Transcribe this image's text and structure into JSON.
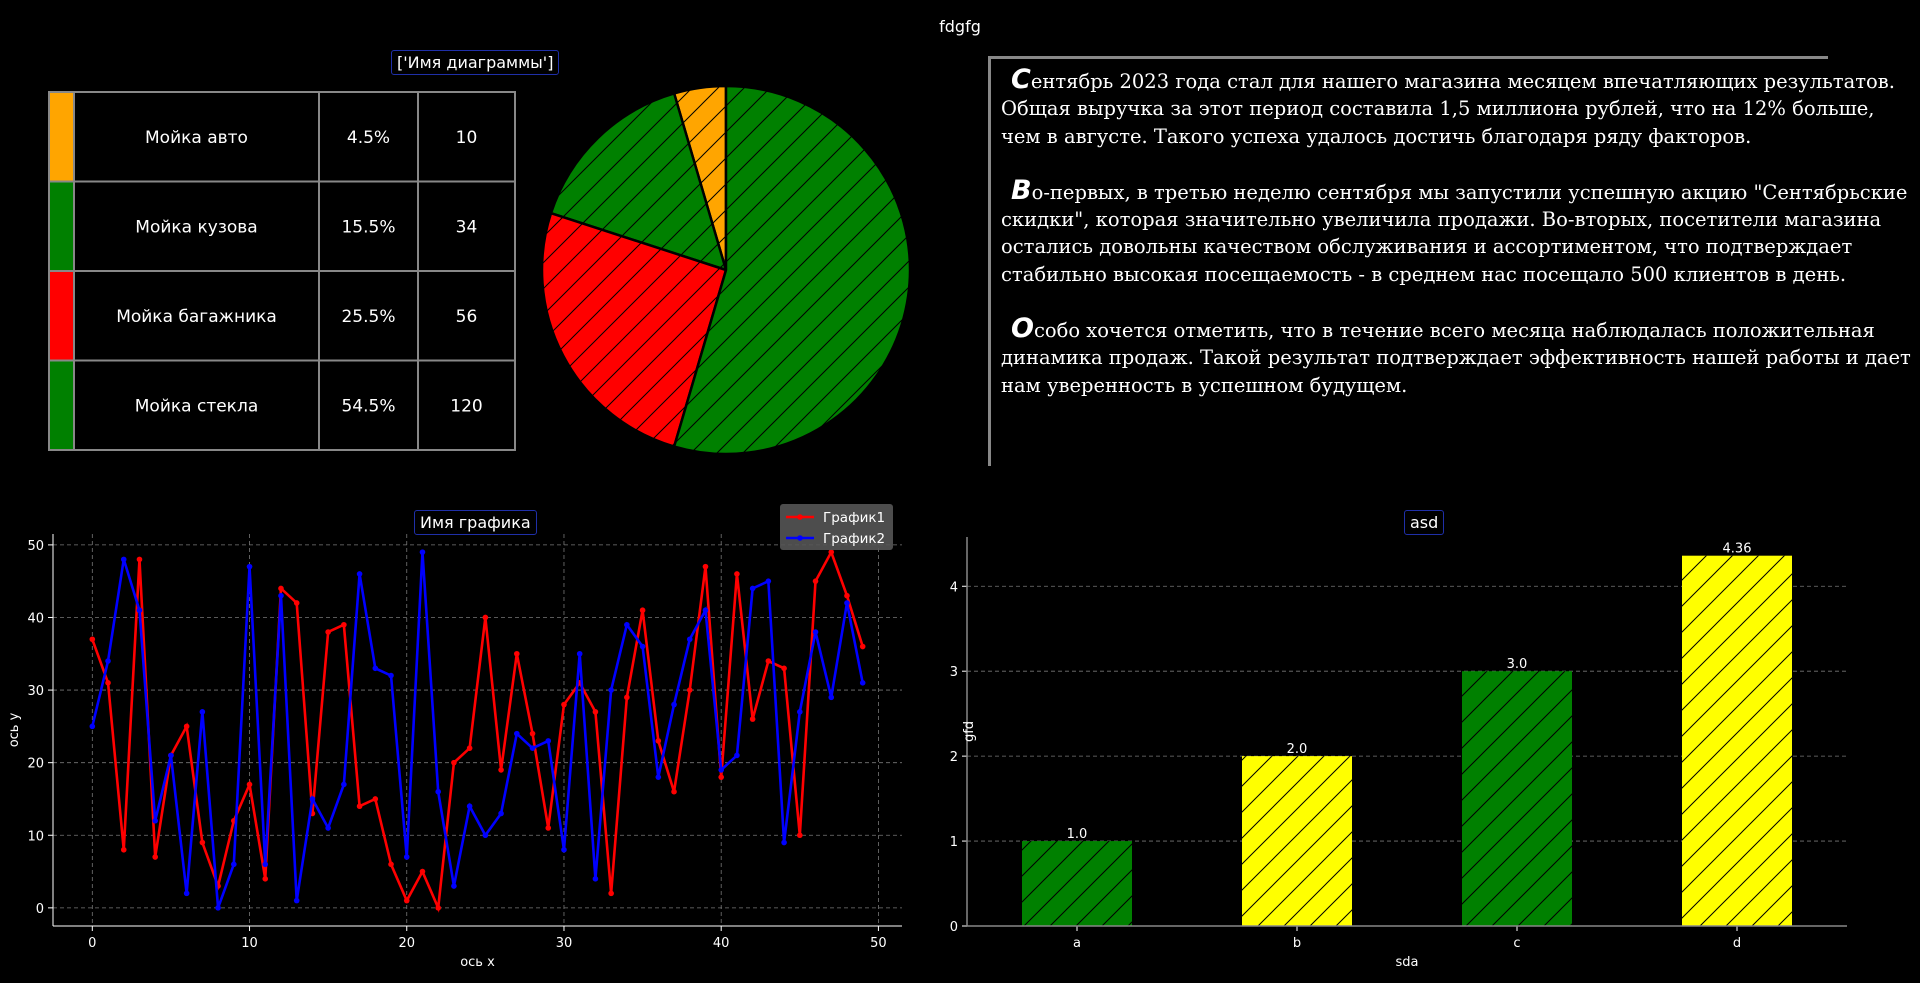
{
  "suptitle": "fdgfg",
  "colors": {
    "orange": "#ffa500",
    "green": "#008000",
    "red": "#ff0000",
    "blue": "#0000ff",
    "yellow": "#ffff00"
  },
  "chart_data": [
    {
      "type": "table",
      "title": "['Имя диаграммы']",
      "rows": [
        {
          "color": "#ffa500",
          "label": "Мойка авто",
          "percent": "4.5%",
          "value": "10"
        },
        {
          "color": "#008000",
          "label": "Мойка кузова",
          "percent": "15.5%",
          "value": "34"
        },
        {
          "color": "#ff0000",
          "label": "Мойка багажника",
          "percent": "25.5%",
          "value": "56"
        },
        {
          "color": "#008000",
          "label": "Мойка стекла",
          "percent": "54.5%",
          "value": "120"
        }
      ]
    },
    {
      "type": "pie",
      "title": "",
      "slices": [
        {
          "label": "Мойка авто",
          "value": 10,
          "color": "#ffa500"
        },
        {
          "label": "Мойка кузова",
          "value": 34,
          "color": "#008000"
        },
        {
          "label": "Мойка багажника",
          "value": 56,
          "color": "#ff0000"
        },
        {
          "label": "Мойка стекла",
          "value": 120,
          "color": "#008000"
        }
      ],
      "hatch": "diagonal"
    },
    {
      "type": "line",
      "title": "Имя графика",
      "xlabel": "ось x",
      "ylabel": "ось y",
      "xlim": [
        -2.5,
        51.5
      ],
      "ylim": [
        -2.5,
        51.5
      ],
      "xticks": [
        0,
        10,
        20,
        30,
        40,
        50
      ],
      "yticks": [
        0,
        10,
        20,
        30,
        40,
        50
      ],
      "grid": true,
      "legend": "top-right",
      "x": [
        0,
        1,
        2,
        3,
        4,
        5,
        6,
        7,
        8,
        9,
        10,
        11,
        12,
        13,
        14,
        15,
        16,
        17,
        18,
        19,
        20,
        21,
        22,
        23,
        24,
        25,
        26,
        27,
        28,
        29,
        30,
        31,
        32,
        33,
        34,
        35,
        36,
        37,
        38,
        39,
        40,
        41,
        42,
        43,
        44,
        45,
        46,
        47,
        48,
        49
      ],
      "series": [
        {
          "name": "График1",
          "color": "#ff0000",
          "values": [
            37,
            31,
            8,
            48,
            7,
            21,
            25,
            9,
            3,
            12,
            17,
            4,
            44,
            42,
            13,
            38,
            39,
            14,
            15,
            6,
            1,
            5,
            0,
            20,
            22,
            40,
            19,
            35,
            24,
            11,
            28,
            31,
            27,
            2,
            29,
            41,
            23,
            16,
            30,
            47,
            18,
            46,
            26,
            34,
            33,
            10,
            45,
            49,
            43,
            36
          ]
        },
        {
          "name": "График2",
          "color": "#0000ff",
          "values": [
            25,
            34,
            48,
            41,
            12,
            21,
            2,
            27,
            0,
            6,
            47,
            6,
            43,
            1,
            15,
            11,
            17,
            46,
            33,
            32,
            7,
            49,
            16,
            3,
            14,
            10,
            13,
            24,
            22,
            23,
            8,
            35,
            4,
            30,
            39,
            36,
            18,
            28,
            37,
            41,
            19,
            21,
            44,
            45,
            9,
            27,
            38,
            29,
            42,
            31
          ]
        }
      ]
    },
    {
      "type": "bar",
      "title": "asd",
      "xlabel": "sda",
      "ylabel": "gfd",
      "categories": [
        "a",
        "b",
        "c",
        "d"
      ],
      "values": [
        1.0,
        2.0,
        3.0,
        4.36
      ],
      "data_labels": [
        "1.0",
        "2.0",
        "3.0",
        "4.36"
      ],
      "bar_colors": [
        "#008000",
        "#ffff00",
        "#008000",
        "#ffff00"
      ],
      "ylim": [
        0,
        4.58
      ],
      "yticks": [
        0,
        1,
        2,
        3,
        4
      ],
      "grid": true,
      "hatch": "diagonal"
    }
  ],
  "text_panel": {
    "paragraphs": [
      {
        "initial": "С",
        "text": "ентябрь 2023 года стал для нашего магазина месяцем впечатляющих результатов. Общая выручка за этот период составила 1,5 миллиона рублей, что на 12% больше, чем в августе. Такого успеха удалось достичь благодаря ряду факторов."
      },
      {
        "initial": "В",
        "text": "о-первых, в третью неделю сентября мы запустили успешную акцию \"Сентябрьские скидки\", которая значительно увеличила продажи. Во-вторых, посетители магазина остались довольны качеством обслуживания и ассортиментом, что подтверждает стабильно высокая посещаемость - в среднем нас посещало 500 клиентов в день."
      },
      {
        "initial": "О",
        "text": "собо хочется отметить, что в течение всего месяца наблюдалась положительная динамика продаж. Такой результат подтверждает эффективность нашей работы и дает нам уверенность в успешном будущем."
      }
    ]
  }
}
